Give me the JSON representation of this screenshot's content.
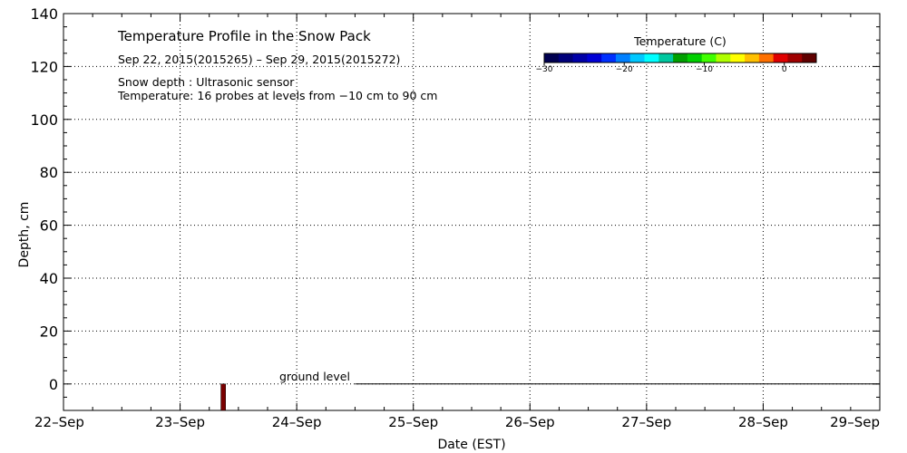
{
  "chart_data": {
    "type": "heatmap",
    "title": "Temperature Profile in the Snow Pack",
    "subtitle": "Sep 22, 2015(2015265) – Sep 29, 2015(2015272)",
    "notes": [
      "Snow depth : Ultrasonic sensor",
      "Temperature: 16 probes at levels from −10 cm to 90 cm"
    ],
    "xlabel": "Date (EST)",
    "ylabel": "Depth, cm",
    "x_categories": [
      "22–Sep",
      "23–Sep",
      "24–Sep",
      "25–Sep",
      "26–Sep",
      "27–Sep",
      "28–Sep",
      "29–Sep"
    ],
    "xlim": [
      0,
      7
    ],
    "ylim": [
      -10,
      140
    ],
    "yticks": [
      0,
      20,
      40,
      60,
      80,
      100,
      120,
      140
    ],
    "grid": true,
    "ground_level_label": "ground level",
    "ground_level_line": {
      "x_start": 2.5,
      "x_end": 7,
      "y": 0
    },
    "bars": [
      {
        "x_start": 1.35,
        "x_end": 1.39,
        "y_bottom": -10,
        "y_top": 0,
        "color": "#7a0000"
      }
    ],
    "colorbar": {
      "label": "Temperature (C)",
      "ticks": [
        "−30",
        "−20",
        "−10",
        "0"
      ],
      "tick_values": [
        -30,
        -20,
        -10,
        0
      ],
      "range": [
        -30,
        4
      ],
      "colors": [
        "#000050",
        "#00007a",
        "#0000a8",
        "#0000d6",
        "#0030ff",
        "#0080ff",
        "#00c8ff",
        "#00ffff",
        "#00c8a0",
        "#00a000",
        "#00d000",
        "#40ff00",
        "#b0ff00",
        "#ffff00",
        "#ffc000",
        "#ff7000",
        "#e00000",
        "#a00000",
        "#600000"
      ]
    },
    "legend_position": "top-right"
  }
}
